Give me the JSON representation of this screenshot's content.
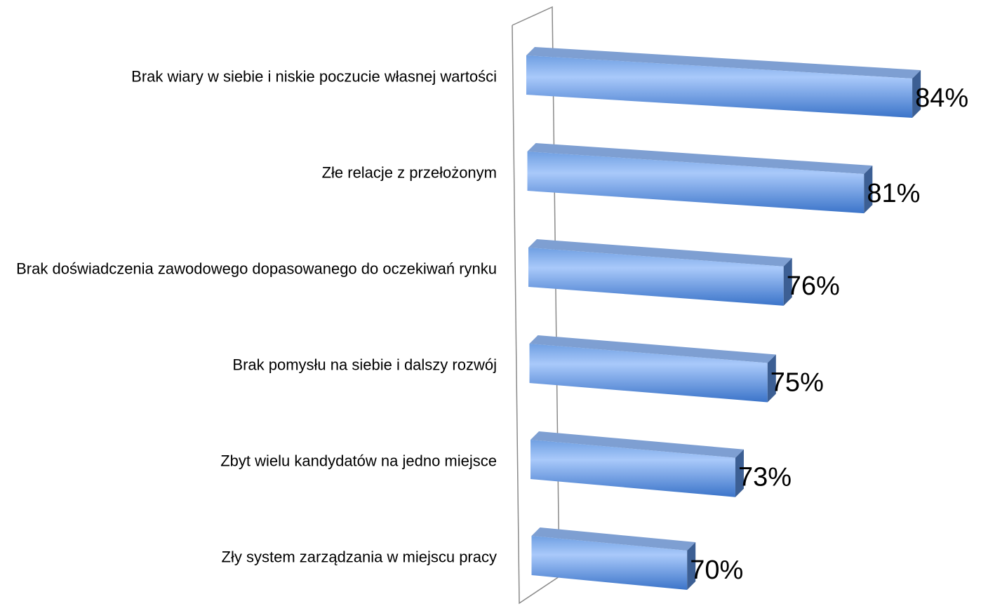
{
  "chart_data": {
    "type": "bar3d_horizontal",
    "categories": [
      "Brak wiary w siebie i niskie poczucie własnej wartości",
      "Złe relacje z przełożonym",
      "Brak doświadczenia zawodowego dopasowanego do oczekiwań rynku",
      "Brak pomysłu na siebie i dalszy rozwój",
      "Zbyt wielu kandydatów na jedno miejsce",
      "Zły system zarządzania w miejscu pracy"
    ],
    "values": [
      84,
      81,
      76,
      75,
      73,
      70
    ],
    "value_labels": [
      "84%",
      "81%",
      "76%",
      "75%",
      "73%",
      "70%"
    ],
    "color": "#4f86d6",
    "xlim": [
      60,
      85
    ]
  }
}
